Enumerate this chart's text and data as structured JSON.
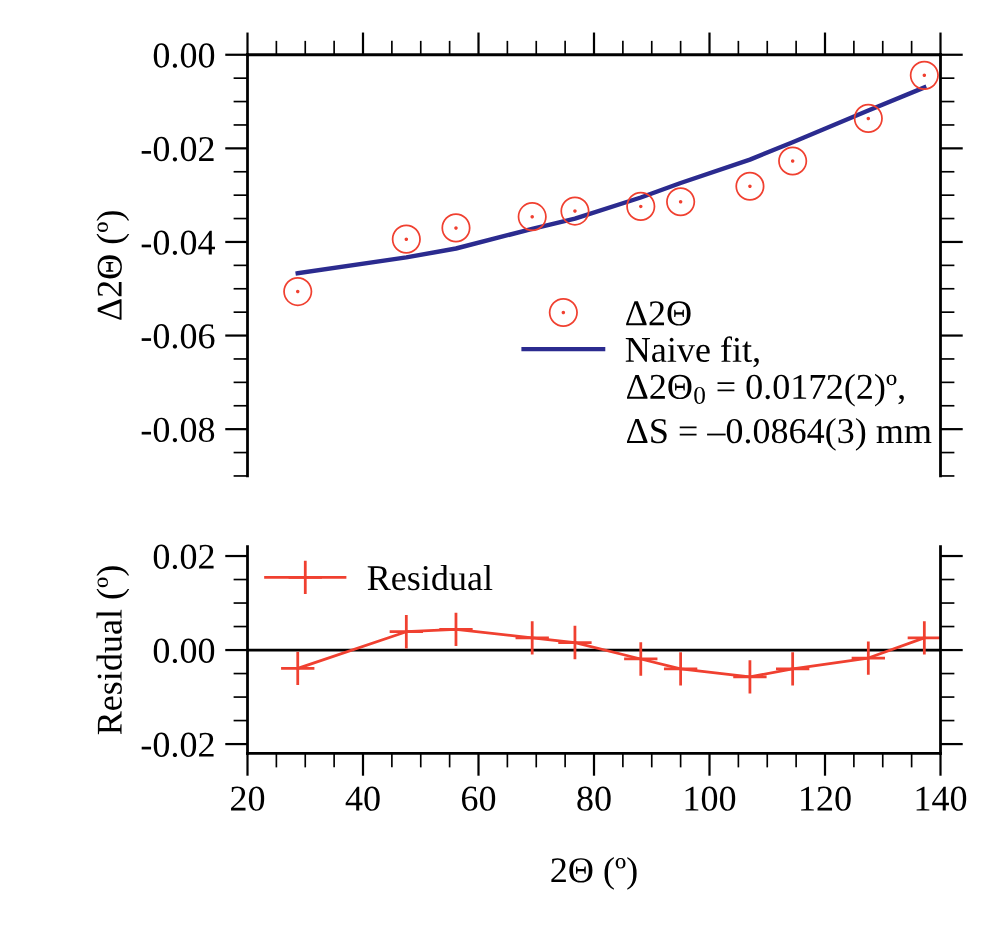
{
  "chart_data": [
    {
      "type": "scatter",
      "ylabel": "Δ2Θ (º)",
      "xlim": [
        20,
        140
      ],
      "xticks": [
        20,
        40,
        60,
        80,
        100,
        120,
        140
      ],
      "ylim": [
        -0.09,
        0.0
      ],
      "yticks": [
        {
          "value": 0.0,
          "label": "0.00"
        },
        {
          "value": -0.02,
          "label": "-0.02"
        },
        {
          "value": -0.04,
          "label": "-0.04"
        },
        {
          "value": -0.06,
          "label": "-0.06"
        },
        {
          "value": -0.08,
          "label": "-0.08"
        }
      ],
      "tick_labels": "y",
      "legend": "bottom right",
      "grid": false,
      "annotations": [
        "Δ2Θ$_{0}$ = 0.0172(2)º,",
        "ΔS = –0.0864(3) mm"
      ],
      "series": [
        {
          "name": "Δ2Θ",
          "marker": "circle",
          "color": "#f04030",
          "x": [
            28.7,
            47.5,
            56.1,
            69.3,
            76.7,
            88.1,
            95.0,
            107.0,
            114.4,
            127.5,
            137.2
          ],
          "values": [
            -0.0506,
            -0.0394,
            -0.037,
            -0.0346,
            -0.0334,
            -0.0324,
            -0.0314,
            -0.0281,
            -0.0227,
            -0.0136,
            -0.0044
          ]
        },
        {
          "name": "Naive fit,",
          "type": "line",
          "marker": "none",
          "line_style": "solid",
          "color": "#2b2b8f",
          "x": [
            28.7,
            47.5,
            56.1,
            69.3,
            76.7,
            88.1,
            95.0,
            107.0,
            114.4,
            127.5,
            137.2
          ],
          "values": [
            -0.0467,
            -0.0433,
            -0.0414,
            -0.0372,
            -0.035,
            -0.0305,
            -0.0274,
            -0.0224,
            -0.0187,
            -0.0119,
            -0.007
          ]
        }
      ]
    },
    {
      "type": "line",
      "xlabel": "2Θ (º)",
      "ylabel": "Residual (º)",
      "xlim": [
        20,
        140
      ],
      "xticks": [
        20,
        40,
        60,
        80,
        100,
        120,
        140
      ],
      "ylim": [
        -0.022,
        0.022
      ],
      "yticks": [
        {
          "value": 0.02,
          "label": "0.02"
        },
        {
          "value": 0.0,
          "label": "0.00"
        },
        {
          "value": -0.02,
          "label": "-0.02"
        }
      ],
      "legend": "top left",
      "grid": false,
      "ref_lines": [
        {
          "axis": "y",
          "value": 0,
          "color": "#000000"
        }
      ],
      "series": [
        {
          "name": "Residual",
          "marker": "cross",
          "line_style": "solid",
          "color": "#f04030",
          "x": [
            28.7,
            47.5,
            56.1,
            69.3,
            76.7,
            88.1,
            95.0,
            107.0,
            114.4,
            127.5,
            137.2
          ],
          "values": [
            -0.0039,
            0.0039,
            0.0044,
            0.0026,
            0.0016,
            -0.0019,
            -0.004,
            -0.0057,
            -0.004,
            -0.0017,
            0.0026
          ]
        }
      ]
    }
  ]
}
